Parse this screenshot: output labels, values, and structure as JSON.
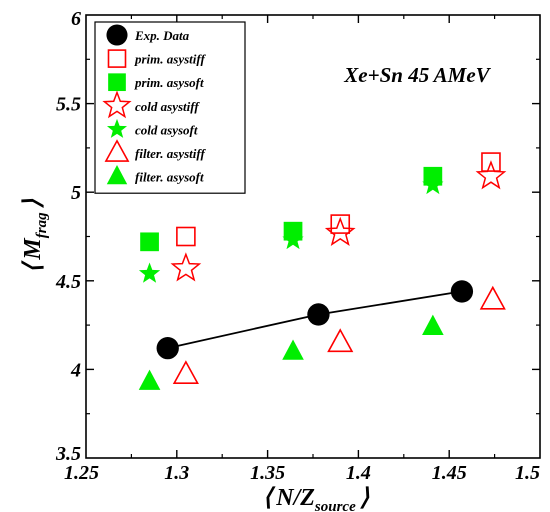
{
  "chart_data": {
    "type": "scatter",
    "title": "",
    "annotation": "Xe+Sn 45 AMeV",
    "xlabel": {
      "bracket_left": "⟨",
      "main": "N/Z",
      "sub": "source",
      "bracket_right": "⟩"
    },
    "ylabel": {
      "bracket_left": "⟨",
      "main": "M",
      "sub": "frag",
      "bracket_right": "⟩"
    },
    "xlim": [
      1.25,
      1.5
    ],
    "ylim": [
      3.5,
      6
    ],
    "xticks": [
      "1.25",
      "1.3",
      "1.35",
      "1.4",
      "1.45",
      "1.5"
    ],
    "yticks": [
      "3.5",
      "4",
      "4.5",
      "5",
      "5.5",
      "6"
    ],
    "grid": false,
    "legend_position": "top-left",
    "colors": {
      "black": "#000000",
      "red": "#ff0000",
      "green": "#00ee00"
    },
    "series": [
      {
        "name": "Exp. Data",
        "marker": "circle-filled",
        "color": "#000000",
        "line": true,
        "x": [
          1.295,
          1.378,
          1.457
        ],
        "y": [
          4.12,
          4.31,
          4.44
        ]
      },
      {
        "name": "prim. asystiff",
        "marker": "square-open",
        "color": "#ff0000",
        "line": false,
        "x": [
          1.305,
          1.39,
          1.473
        ],
        "y": [
          4.75,
          4.82,
          5.17
        ]
      },
      {
        "name": "prim. asysoft",
        "marker": "square-filled",
        "color": "#00ee00",
        "line": false,
        "x": [
          1.285,
          1.364,
          1.441
        ],
        "y": [
          4.72,
          4.78,
          5.09
        ]
      },
      {
        "name": "cold asystiff",
        "marker": "star-open",
        "color": "#ff0000",
        "line": false,
        "x": [
          1.305,
          1.39,
          1.473
        ],
        "y": [
          4.57,
          4.77,
          5.09
        ]
      },
      {
        "name": "cold asysoft",
        "marker": "star-filled",
        "color": "#00ee00",
        "line": false,
        "x": [
          1.285,
          1.364,
          1.441
        ],
        "y": [
          4.54,
          4.73,
          5.04
        ]
      },
      {
        "name": "filter. asystiff",
        "marker": "triangle-open",
        "color": "#ff0000",
        "line": false,
        "x": [
          1.305,
          1.39,
          1.474
        ],
        "y": [
          3.97,
          4.15,
          4.39
        ]
      },
      {
        "name": "filter. asysoft",
        "marker": "triangle-filled",
        "color": "#00ee00",
        "line": false,
        "x": [
          1.285,
          1.364,
          1.441
        ],
        "y": [
          3.93,
          4.1,
          4.24
        ]
      }
    ]
  }
}
